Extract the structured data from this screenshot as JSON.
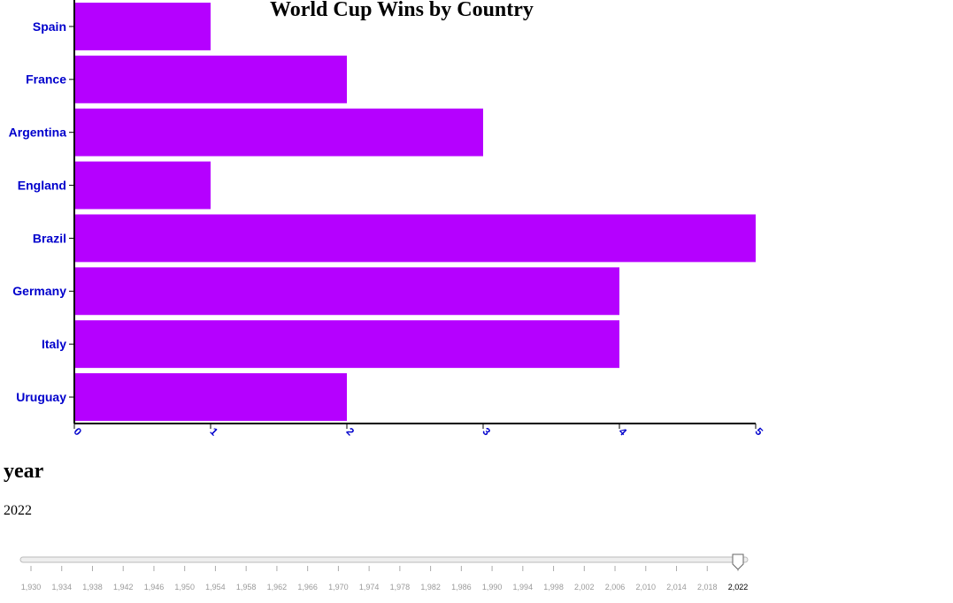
{
  "chart_data": {
    "type": "bar",
    "orientation": "horizontal",
    "title": "World Cup Wins by Country",
    "categories": [
      "Spain",
      "France",
      "Argentina",
      "England",
      "Brazil",
      "Germany",
      "Italy",
      "Uruguay"
    ],
    "values": [
      1,
      2,
      3,
      1,
      5,
      4,
      4,
      2
    ],
    "xlim": [
      0,
      5
    ],
    "x_ticks": [
      "0",
      "1",
      "2",
      "3",
      "4",
      "5"
    ],
    "grid": false,
    "colors": {
      "bar": "#b500ff",
      "tick_label": "#0000cc",
      "axis": "#000000"
    }
  },
  "year_control": {
    "heading": "year",
    "value": "2022",
    "min": 1930,
    "max": 2022,
    "selected": 2022,
    "tick_labels": [
      "1,930",
      "1,934",
      "1,938",
      "1,942",
      "1,946",
      "1,950",
      "1,954",
      "1,958",
      "1,962",
      "1,966",
      "1,970",
      "1,974",
      "1,978",
      "1,982",
      "1,986",
      "1,990",
      "1,994",
      "1,998",
      "2,002",
      "2,006",
      "2,010",
      "2,014",
      "2,018",
      "2,022"
    ]
  }
}
